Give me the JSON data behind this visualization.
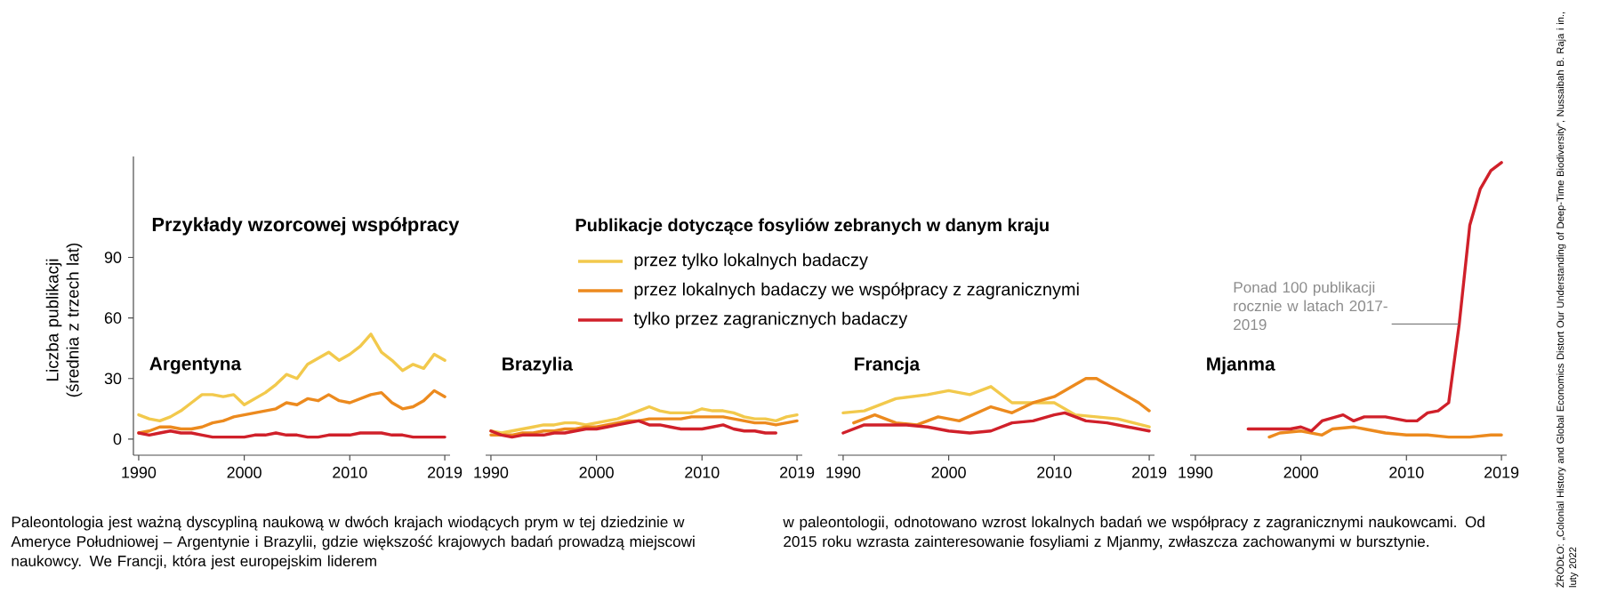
{
  "chart_data": [
    {
      "type": "line",
      "title": "Argentyna",
      "ylabel": "Liczba publikacji (średnia z trzech lat)",
      "legend_title": "Publikacje dotyczące fosyliów zebranych w danym kraju",
      "legend": "top",
      "xlim": [
        1989.5,
        2019.5
      ],
      "ylim": [
        -8,
        140
      ],
      "xticks": [
        1990,
        2000,
        2010,
        2019
      ],
      "yticks": [
        0,
        30,
        60,
        90
      ],
      "annotations": [
        "Przykłady wzorcowej współpracy",
        "Paleontologia jest ważną dyscypliną naukową w dwóch krajach wiodących prym w tej dziedzinie w Ameryce Południowej – Argentynie i Brazylii, gdzie większość krajowych badań prowadzą miejscowi naukowcy. We Francji, która jest europejskim liderem",
        "w paleontologii, odnotowano wzrost lokalnych badań we współpracy z zagranicznymi naukowcami. Od 2015 roku wzrasta zainteresowanie fosyliami z Mjanmy, zwłaszcza zachowanymi w bursztynie.",
        "ŹRÓDŁO: „Colonial History and Global Economics Distort Our Understanding of Deep-Time Biodiversity”, Nussaibah B. Raja i in., luty 2022"
      ],
      "series": [
        {
          "name": "przez tylko lokalnych badaczy",
          "color": "#f2c94c",
          "x": [
            1990,
            1991,
            1992,
            1993,
            1994,
            1995,
            1996,
            1997,
            1998,
            1999,
            2000,
            2001,
            2002,
            2003,
            2004,
            2005,
            2006,
            2007,
            2008,
            2009,
            2010,
            2011,
            2012,
            2013,
            2014,
            2015,
            2016,
            2017,
            2018,
            2019
          ],
          "values": [
            12,
            10,
            9,
            11,
            14,
            18,
            22,
            22,
            21,
            22,
            17,
            20,
            23,
            27,
            32,
            30,
            37,
            40,
            43,
            39,
            42,
            46,
            52,
            43,
            39,
            34,
            37,
            35,
            42,
            39
          ]
        },
        {
          "name": "przez lokalnych badaczy we współpracy z zagranicznymi",
          "color": "#ec8a1e",
          "x": [
            1990,
            1991,
            1992,
            1993,
            1994,
            1995,
            1996,
            1997,
            1998,
            1999,
            2000,
            2001,
            2002,
            2003,
            2004,
            2005,
            2006,
            2007,
            2008,
            2009,
            2010,
            2011,
            2012,
            2013,
            2014,
            2015,
            2016,
            2017,
            2018,
            2019
          ],
          "values": [
            3,
            4,
            6,
            6,
            5,
            5,
            6,
            8,
            9,
            11,
            12,
            13,
            14,
            15,
            18,
            17,
            20,
            19,
            22,
            19,
            18,
            20,
            22,
            23,
            18,
            15,
            16,
            19,
            24,
            21
          ]
        },
        {
          "name": "tylko przez zagranicznych badaczy",
          "color": "#d0202a",
          "x": [
            1990,
            1991,
            1992,
            1993,
            1994,
            1995,
            1996,
            1997,
            1998,
            1999,
            2000,
            2001,
            2002,
            2003,
            2004,
            2005,
            2006,
            2007,
            2008,
            2009,
            2010,
            2011,
            2012,
            2013,
            2014,
            2015,
            2016,
            2017,
            2018,
            2019
          ],
          "values": [
            3,
            2,
            3,
            4,
            3,
            3,
            2,
            1,
            1,
            1,
            1,
            2,
            2,
            3,
            2,
            2,
            1,
            1,
            2,
            2,
            2,
            3,
            3,
            3,
            2,
            2,
            1,
            1,
            1,
            1
          ]
        }
      ]
    },
    {
      "type": "line",
      "title": "Brazylia",
      "tick_labels": "x",
      "xlim": [
        1989.5,
        2019.5
      ],
      "yticks": [
        0,
        30,
        60,
        90
      ],
      "xticks": [
        1990,
        2000,
        2010,
        2019
      ],
      "series": [
        {
          "color": "#f2c94c",
          "x": [
            1990,
            1991,
            1992,
            1993,
            1994,
            1995,
            1996,
            1997,
            1998,
            1999,
            2000,
            2001,
            2002,
            2003,
            2004,
            2005,
            2006,
            2007,
            2008,
            2009,
            2010,
            2011,
            2012,
            2013,
            2014,
            2015,
            2016,
            2017,
            2018,
            2019
          ],
          "values": [
            4,
            3,
            4,
            5,
            6,
            7,
            7,
            8,
            8,
            7,
            8,
            9,
            10,
            12,
            14,
            16,
            14,
            13,
            13,
            13,
            15,
            14,
            14,
            13,
            11,
            10,
            10,
            9,
            11,
            12
          ]
        },
        {
          "color": "#ec8a1e",
          "x": [
            1990,
            1991,
            1992,
            1993,
            1994,
            1995,
            1996,
            1997,
            1998,
            1999,
            2000,
            2001,
            2002,
            2003,
            2004,
            2005,
            2006,
            2007,
            2008,
            2009,
            2010,
            2011,
            2012,
            2013,
            2014,
            2015,
            2016,
            2017,
            2018,
            2019
          ],
          "values": [
            2,
            2,
            2,
            3,
            3,
            4,
            4,
            5,
            5,
            6,
            6,
            7,
            8,
            9,
            9,
            10,
            10,
            10,
            10,
            11,
            11,
            11,
            11,
            10,
            9,
            8,
            8,
            7,
            8,
            9
          ]
        },
        {
          "color": "#d0202a",
          "x": [
            1990,
            1991,
            1992,
            1993,
            1994,
            1995,
            1996,
            1997,
            1998,
            1999,
            2000,
            2001,
            2002,
            2003,
            2004,
            2005,
            2006,
            2007,
            2008,
            2009,
            2010,
            2011,
            2012,
            2013,
            2014,
            2015,
            2016,
            2017
          ],
          "values": [
            4,
            2,
            1,
            2,
            2,
            2,
            3,
            3,
            4,
            5,
            5,
            6,
            7,
            8,
            9,
            7,
            7,
            6,
            5,
            5,
            5,
            6,
            7,
            5,
            4,
            4,
            3,
            3
          ]
        }
      ]
    },
    {
      "type": "line",
      "title": "Francja",
      "tick_labels": "x",
      "xlim": [
        1989.5,
        2019.5
      ],
      "yticks": [
        0,
        30,
        60,
        90
      ],
      "xticks": [
        1990,
        2000,
        2010,
        2019
      ],
      "series": [
        {
          "color": "#f2c94c",
          "x": [
            1990,
            1992,
            1995,
            1998,
            2000,
            2002,
            2004,
            2006,
            2008,
            2010,
            2012,
            2014,
            2016,
            2019
          ],
          "values": [
            13,
            14,
            20,
            22,
            24,
            22,
            26,
            18,
            18,
            18,
            12,
            11,
            10,
            6
          ]
        },
        {
          "color": "#ec8a1e",
          "x": [
            1991,
            1993,
            1995,
            1997,
            1999,
            2001,
            2004,
            2006,
            2008,
            2010,
            2012,
            2013,
            2014,
            2016,
            2018,
            2019
          ],
          "values": [
            8,
            12,
            8,
            7,
            11,
            9,
            16,
            13,
            18,
            21,
            27,
            30,
            30,
            24,
            18,
            14
          ]
        },
        {
          "color": "#d0202a",
          "x": [
            1990,
            1992,
            1994,
            1996,
            1998,
            2000,
            2002,
            2004,
            2006,
            2008,
            2010,
            2011,
            2013,
            2015,
            2017,
            2019
          ],
          "values": [
            3,
            7,
            7,
            7,
            6,
            4,
            3,
            4,
            8,
            9,
            12,
            13,
            9,
            8,
            6,
            4
          ]
        }
      ]
    },
    {
      "type": "line",
      "title": "Mjanma",
      "tick_labels": "x",
      "xlim": [
        1989.5,
        2019.5
      ],
      "yticks": [
        0,
        30,
        60,
        90
      ],
      "xticks": [
        1990,
        2000,
        2010,
        2019
      ],
      "annotations": [
        {
          "text": "Ponad 100 publikacji rocznie w latach 2017-2019",
          "x": 2015,
          "y": 57
        }
      ],
      "series": [
        {
          "color": "#ec8a1e",
          "x": [
            1997,
            1998,
            2000,
            2002,
            2003,
            2005,
            2006,
            2008,
            2010,
            2012,
            2014,
            2016,
            2018,
            2019
          ],
          "values": [
            1,
            3,
            4,
            2,
            5,
            6,
            5,
            3,
            2,
            2,
            1,
            1,
            2,
            2
          ]
        },
        {
          "color": "#d0202a",
          "x": [
            1995,
            1999,
            2000,
            2001,
            2002,
            2004,
            2005,
            2006,
            2008,
            2010,
            2011,
            2012,
            2013,
            2014,
            2015,
            2016,
            2017,
            2018,
            2019
          ],
          "values": [
            5,
            5,
            6,
            4,
            9,
            12,
            9,
            11,
            11,
            9,
            9,
            13,
            14,
            18,
            57,
            106,
            124,
            133,
            137
          ]
        }
      ]
    }
  ]
}
